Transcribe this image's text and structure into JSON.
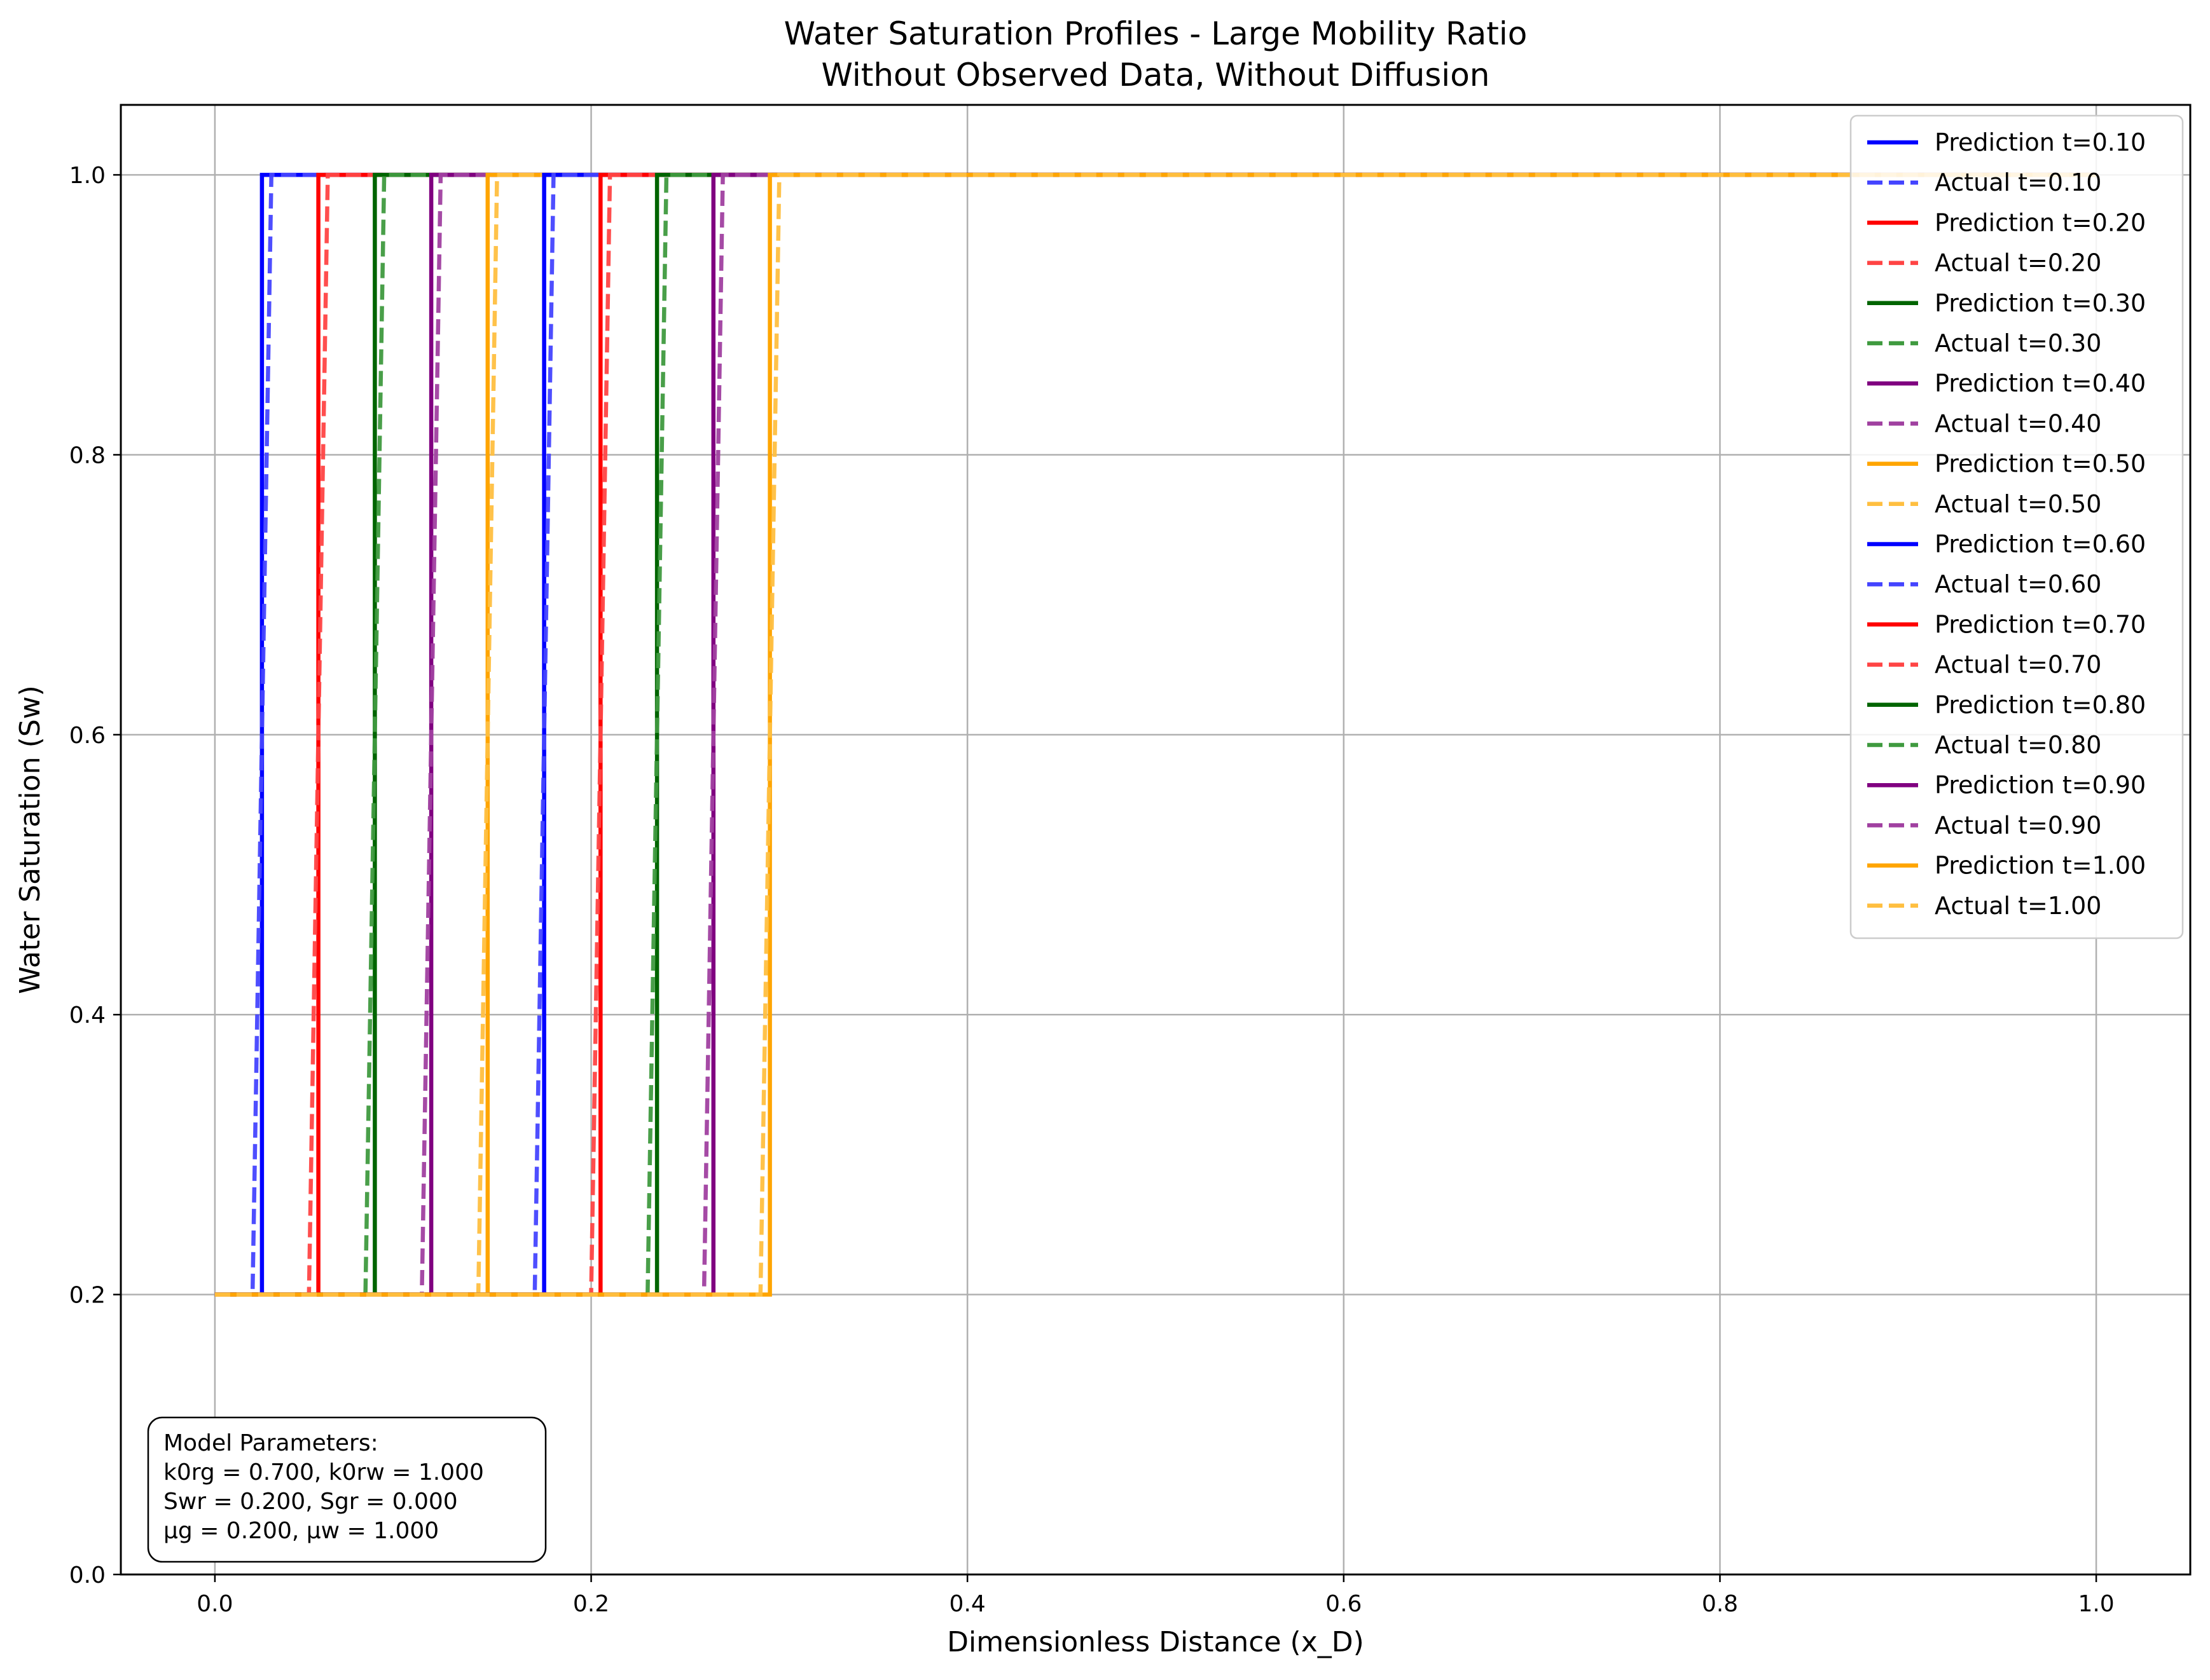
{
  "chart_data": {
    "type": "line",
    "title": "Water Saturation Profiles - Large Mobility Ratio",
    "subtitle": "Without Observed Data, Without Diffusion",
    "xlabel": "Dimensionless Distance (x_D)",
    "ylabel": "Water Saturation (Sw)",
    "xlim": [
      -0.05,
      1.05
    ],
    "ylim": [
      0.0,
      1.05
    ],
    "xticks": [
      "0.0",
      "0.2",
      "0.4",
      "0.6",
      "0.8",
      "1.0"
    ],
    "yticks": [
      "0.0",
      "0.2",
      "0.4",
      "0.6",
      "0.8",
      "1.0"
    ],
    "grid": true,
    "legend_position": "top-right",
    "x_domain": [
      0.0,
      1.0
    ],
    "series_values": [
      0.2,
      1.0
    ],
    "series": [
      {
        "name": "Prediction t=0.10",
        "style": "solid",
        "color": "#0000ff",
        "front": [
          0.025,
          0.025
        ]
      },
      {
        "name": "Actual t=0.10",
        "style": "dashed",
        "color": "#4444ff",
        "front": [
          0.02,
          0.03
        ]
      },
      {
        "name": "Prediction t=0.20",
        "style": "solid",
        "color": "#ff0000",
        "front": [
          0.055,
          0.055
        ]
      },
      {
        "name": "Actual t=0.20",
        "style": "dashed",
        "color": "#ff4444",
        "front": [
          0.05,
          0.06
        ]
      },
      {
        "name": "Prediction t=0.30",
        "style": "solid",
        "color": "#006400",
        "front": [
          0.085,
          0.085
        ]
      },
      {
        "name": "Actual t=0.30",
        "style": "dashed",
        "color": "#3f9a3f",
        "front": [
          0.08,
          0.09
        ]
      },
      {
        "name": "Prediction t=0.40",
        "style": "solid",
        "color": "#800080",
        "front": [
          0.115,
          0.115
        ]
      },
      {
        "name": "Actual t=0.40",
        "style": "dashed",
        "color": "#a040a0",
        "front": [
          0.11,
          0.12
        ]
      },
      {
        "name": "Prediction t=0.50",
        "style": "solid",
        "color": "#ffa500",
        "front": [
          0.145,
          0.145
        ]
      },
      {
        "name": "Actual t=0.50",
        "style": "dashed",
        "color": "#ffbf40",
        "front": [
          0.14,
          0.15
        ]
      },
      {
        "name": "Prediction t=0.60",
        "style": "solid",
        "color": "#0000ff",
        "front": [
          0.175,
          0.175
        ]
      },
      {
        "name": "Actual t=0.60",
        "style": "dashed",
        "color": "#4444ff",
        "front": [
          0.17,
          0.18
        ]
      },
      {
        "name": "Prediction t=0.70",
        "style": "solid",
        "color": "#ff0000",
        "front": [
          0.205,
          0.205
        ]
      },
      {
        "name": "Actual t=0.70",
        "style": "dashed",
        "color": "#ff4444",
        "front": [
          0.2,
          0.21
        ]
      },
      {
        "name": "Prediction t=0.80",
        "style": "solid",
        "color": "#006400",
        "front": [
          0.235,
          0.235
        ]
      },
      {
        "name": "Actual t=0.80",
        "style": "dashed",
        "color": "#3f9a3f",
        "front": [
          0.23,
          0.24
        ]
      },
      {
        "name": "Prediction t=0.90",
        "style": "solid",
        "color": "#800080",
        "front": [
          0.265,
          0.265
        ]
      },
      {
        "name": "Actual t=0.90",
        "style": "dashed",
        "color": "#a040a0",
        "front": [
          0.26,
          0.27
        ]
      },
      {
        "name": "Prediction t=1.00",
        "style": "solid",
        "color": "#ffa500",
        "front": [
          0.295,
          0.295
        ]
      },
      {
        "name": "Actual t=1.00",
        "style": "dashed",
        "color": "#ffbf40",
        "front": [
          0.29,
          0.3
        ]
      }
    ],
    "annotation": {
      "lines": [
        "Model Parameters:",
        "k0rg = 0.700, k0rw = 1.000",
        "Swr = 0.200, Sgr = 0.000",
        "μg = 0.200, μw = 1.000"
      ]
    }
  }
}
